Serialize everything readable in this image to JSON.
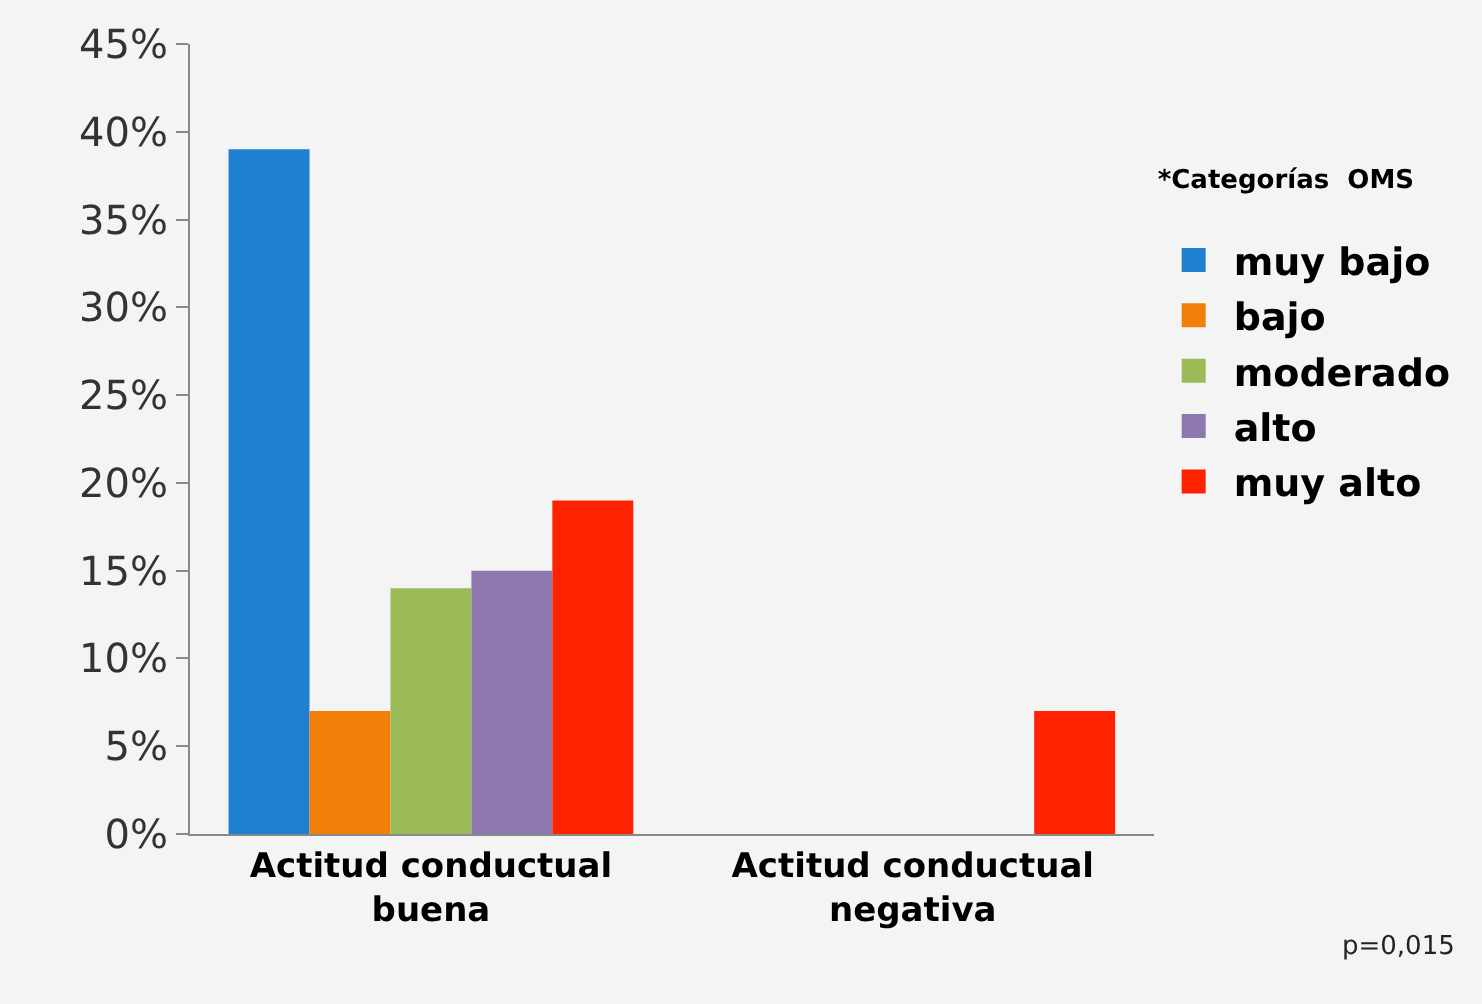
{
  "chart_data": {
    "type": "bar",
    "categories": [
      "Actitud conductual buena",
      "Actitud conductual negativa"
    ],
    "series": [
      {
        "name": "muy bajo",
        "color": "#1f7fd0",
        "values": [
          39,
          0
        ]
      },
      {
        "name": "bajo",
        "color": "#f0800a",
        "values": [
          7,
          0
        ]
      },
      {
        "name": "moderado",
        "color": "#9bbb59",
        "values": [
          14,
          0
        ]
      },
      {
        "name": "alto",
        "color": "#8f78b0",
        "values": [
          15,
          0
        ]
      },
      {
        "name": "muy alto",
        "color": "#ff2200",
        "values": [
          19,
          7
        ]
      }
    ],
    "ylim": [
      0,
      45
    ],
    "yticks": [
      {
        "value": 0,
        "label": "0%"
      },
      {
        "value": 5,
        "label": "5%"
      },
      {
        "value": 10,
        "label": "10%"
      },
      {
        "value": 15,
        "label": "15%"
      },
      {
        "value": 20,
        "label": "20%"
      },
      {
        "value": 25,
        "label": "25%"
      },
      {
        "value": 30,
        "label": "30%"
      },
      {
        "value": 35,
        "label": "35%"
      },
      {
        "value": 40,
        "label": "40%"
      },
      {
        "value": 45,
        "label": "45%"
      }
    ],
    "legend": "right",
    "legend_title": "*Categorías  OMS",
    "grid": false,
    "annotations": [
      "p=0,015"
    ]
  }
}
